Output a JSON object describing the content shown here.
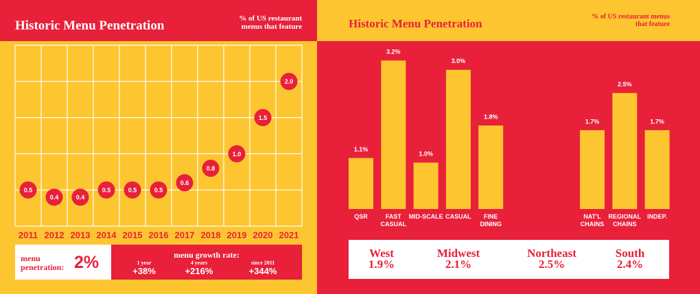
{
  "chart_data": [
    {
      "type": "scatter",
      "title": "Historic Menu Penetration",
      "subtitle": "% of US restaurant menus that feature",
      "categories": [
        "2011",
        "2012",
        "2013",
        "2014",
        "2015",
        "2016",
        "2017",
        "2018",
        "2019",
        "2020",
        "2021"
      ],
      "values": [
        0.5,
        0.4,
        0.4,
        0.5,
        0.5,
        0.5,
        0.6,
        0.8,
        1.0,
        1.5,
        2.0
      ],
      "value_labels": [
        "0.5",
        "0.4",
        "0.4",
        "0.5",
        "0.5",
        "0.5",
        "0.6",
        "0.8",
        "1.0",
        "1.5",
        "2.0"
      ],
      "color": "#e8203a",
      "ylim": [
        0,
        2.5
      ],
      "grid": true
    },
    {
      "type": "bar",
      "title": "Historic Menu Penetration",
      "subtitle": "% of US restaurant menus that feature",
      "groups": [
        {
          "categories": [
            "QSR",
            "FAST CASUAL",
            "MID-SCALE",
            "CASUAL",
            "FINE DINING"
          ],
          "values": [
            1.1,
            3.2,
            1.0,
            3.0,
            1.8
          ],
          "value_labels": [
            "1.1%",
            "3.2%",
            "1.0%",
            "3.0%",
            "1.8%"
          ]
        },
        {
          "categories": [
            "NAT'L CHAINS",
            "REGIONAL CHAINS",
            "INDEP."
          ],
          "values": [
            1.7,
            2.5,
            1.7
          ],
          "value_labels": [
            "1.7%",
            "2.5%",
            "1.7%"
          ]
        }
      ],
      "color": "#fdc530",
      "ylim": [
        0,
        3.5
      ]
    }
  ],
  "summary": {
    "label": "menu penetration:",
    "value": "2%",
    "growth_title": "menu growth rate:",
    "growth": [
      {
        "period": "1 year",
        "value": "+38%"
      },
      {
        "period": "4 years",
        "value": "+216%"
      },
      {
        "period": "since 2011",
        "value": "+344%"
      }
    ]
  },
  "regions": [
    {
      "name": "West",
      "value": "1.9%"
    },
    {
      "name": "Midwest",
      "value": "2.1%"
    },
    {
      "name": "Northeast",
      "value": "2.5%"
    },
    {
      "name": "South",
      "value": "2.4%"
    }
  ]
}
